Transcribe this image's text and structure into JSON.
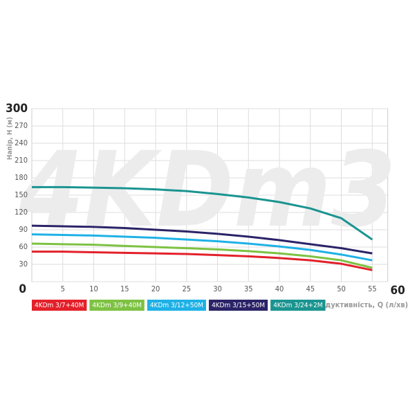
{
  "chart_data": {
    "type": "line",
    "watermark": "4KDm3",
    "y_label": "Напір, H (м)",
    "x_label": "Продуктивність, Q (л/хв)",
    "x": [
      0,
      5,
      10,
      15,
      20,
      25,
      30,
      35,
      40,
      45,
      50,
      55
    ],
    "xlim": [
      0,
      60
    ],
    "xticks": [
      5,
      10,
      15,
      20,
      25,
      30,
      35,
      40,
      45,
      50,
      55,
      60
    ],
    "ylim": [
      0,
      300
    ],
    "yticks": [
      0,
      30,
      60,
      90,
      120,
      150,
      180,
      210,
      240,
      270,
      300
    ],
    "grid": true,
    "series": [
      {
        "name": "4KDm 3/7+40M",
        "color": "#e3202a",
        "values": [
          52,
          52,
          51,
          50,
          49,
          48,
          46,
          44,
          41,
          37,
          31,
          20
        ]
      },
      {
        "name": "4KDm 3/9+40M",
        "color": "#7dc242",
        "values": [
          66,
          65,
          64,
          62,
          60,
          58,
          56,
          53,
          49,
          44,
          37,
          24
        ]
      },
      {
        "name": "4KDm 3/12+50M",
        "color": "#1eb1e6",
        "values": [
          82,
          81,
          80,
          78,
          76,
          73,
          70,
          66,
          61,
          55,
          47,
          37
        ]
      },
      {
        "name": "4KDm 3/15+50M",
        "color": "#2a2367",
        "values": [
          97,
          96,
          95,
          93,
          90,
          87,
          83,
          78,
          72,
          65,
          58,
          49
        ]
      },
      {
        "name": "4KDm 3/24+2M",
        "color": "#1a9490",
        "values": [
          164,
          164,
          163,
          162,
          160,
          157,
          152,
          146,
          138,
          127,
          110,
          73
        ]
      }
    ]
  }
}
